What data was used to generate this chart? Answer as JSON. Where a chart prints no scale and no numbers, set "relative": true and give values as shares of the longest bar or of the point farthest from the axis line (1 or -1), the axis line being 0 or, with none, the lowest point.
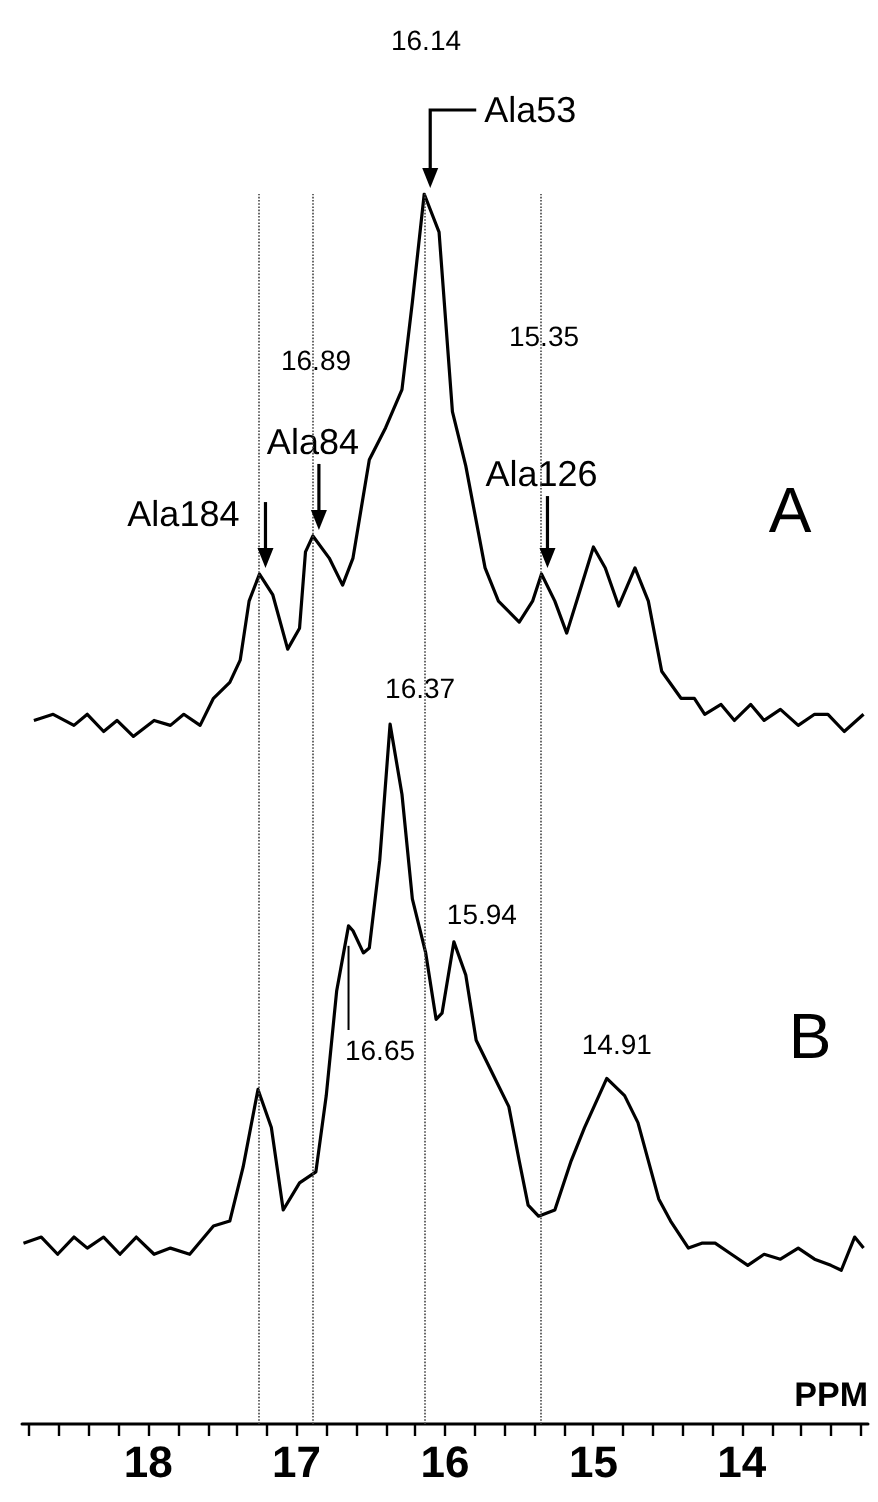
{
  "chart_data": {
    "type": "line",
    "relative": true,
    "marker": "none",
    "xlabel": "PPM",
    "xlim": [
      18.85,
      13.15
    ],
    "xticks": [
      {
        "value": 18.8,
        "label": null
      },
      {
        "value": 18.6,
        "label": null
      },
      {
        "value": 18.4,
        "label": null
      },
      {
        "value": 18.2,
        "label": null
      },
      18,
      {
        "value": 17.8,
        "label": null
      },
      {
        "value": 17.6,
        "label": null
      },
      {
        "value": 17.4,
        "label": null
      },
      {
        "value": 17.2,
        "label": null
      },
      17,
      {
        "value": 16.8,
        "label": null
      },
      {
        "value": 16.6,
        "label": null
      },
      {
        "value": 16.4,
        "label": null
      },
      {
        "value": 16.2,
        "label": null
      },
      16,
      {
        "value": 15.8,
        "label": null
      },
      {
        "value": 15.6,
        "label": null
      },
      {
        "value": 15.4,
        "label": null
      },
      {
        "value": 15.2,
        "label": null
      },
      15,
      {
        "value": 14.8,
        "label": null
      },
      {
        "value": 14.6,
        "label": null
      },
      {
        "value": 14.4,
        "label": null
      },
      {
        "value": 14.2,
        "label": null
      },
      14,
      {
        "value": 13.8,
        "label": null
      },
      {
        "value": 13.6,
        "label": null
      },
      {
        "value": 13.4,
        "label": null
      },
      {
        "value": 13.2,
        "label": null
      }
    ],
    "series": [
      {
        "name": "A",
        "color": "#000000",
        "x": [
          18.77,
          18.64,
          18.5,
          18.41,
          18.3,
          18.21,
          18.1,
          17.96,
          17.85,
          17.76,
          17.65,
          17.56,
          17.45,
          17.38,
          17.32,
          17.25,
          17.16,
          17.06,
          16.98,
          16.94,
          16.89,
          16.78,
          16.69,
          16.62,
          16.51,
          16.4,
          16.29,
          16.22,
          16.14,
          16.04,
          15.95,
          15.86,
          15.73,
          15.64,
          15.5,
          15.41,
          15.35,
          15.26,
          15.18,
          15.1,
          15.0,
          14.92,
          14.83,
          14.72,
          14.63,
          14.54,
          14.41,
          14.32,
          14.25,
          14.14,
          14.05,
          13.94,
          13.85,
          13.74,
          13.62,
          13.51,
          13.42,
          13.31,
          13.18
        ],
        "values": [
          0.572,
          0.577,
          0.568,
          0.577,
          0.563,
          0.572,
          0.559,
          0.572,
          0.568,
          0.577,
          0.568,
          0.59,
          0.603,
          0.621,
          0.669,
          0.691,
          0.674,
          0.63,
          0.647,
          0.709,
          0.722,
          0.704,
          0.682,
          0.704,
          0.784,
          0.81,
          0.841,
          0.912,
          1,
          0.969,
          0.823,
          0.779,
          0.696,
          0.669,
          0.652,
          0.669,
          0.691,
          0.669,
          0.643,
          0.674,
          0.713,
          0.696,
          0.665,
          0.696,
          0.669,
          0.612,
          0.59,
          0.59,
          0.577,
          0.585,
          0.572,
          0.585,
          0.572,
          0.581,
          0.568,
          0.577,
          0.577,
          0.563,
          0.577
        ]
      },
      {
        "name": "B",
        "color": "#000000",
        "x": [
          18.84,
          18.72,
          18.61,
          18.5,
          18.41,
          18.3,
          18.19,
          18.08,
          17.96,
          17.85,
          17.72,
          17.56,
          17.45,
          17.36,
          17.26,
          17.17,
          17.09,
          16.98,
          16.87,
          16.8,
          16.73,
          16.65,
          16.62,
          16.55,
          16.51,
          16.44,
          16.37,
          16.29,
          16.22,
          16.13,
          16.06,
          16.02,
          15.94,
          15.86,
          15.79,
          15.68,
          15.57,
          15.5,
          15.44,
          15.37,
          15.26,
          15.15,
          15.06,
          14.91,
          14.79,
          14.7,
          14.56,
          14.48,
          14.36,
          14.27,
          14.18,
          14.07,
          13.96,
          13.85,
          13.74,
          13.62,
          13.51,
          13.4,
          13.33,
          13.24,
          13.18
        ],
        "values": [
          0.147,
          0.152,
          0.138,
          0.152,
          0.143,
          0.152,
          0.138,
          0.152,
          0.138,
          0.143,
          0.138,
          0.161,
          0.165,
          0.209,
          0.272,
          0.241,
          0.174,
          0.196,
          0.205,
          0.267,
          0.352,
          0.405,
          0.401,
          0.383,
          0.387,
          0.458,
          0.569,
          0.512,
          0.427,
          0.383,
          0.329,
          0.334,
          0.392,
          0.365,
          0.312,
          0.285,
          0.258,
          0.214,
          0.178,
          0.169,
          0.174,
          0.214,
          0.241,
          0.281,
          0.267,
          0.245,
          0.183,
          0.165,
          0.143,
          0.147,
          0.147,
          0.138,
          0.129,
          0.138,
          0.134,
          0.143,
          0.134,
          0.129,
          0.125,
          0.152,
          0.143
        ]
      }
    ],
    "ref_lines": [
      {
        "axis": "x",
        "value": 17.25,
        "line_style": "dotted"
      },
      {
        "axis": "x",
        "value": 16.89,
        "line_style": "dotted"
      },
      {
        "axis": "x",
        "value": 16.14,
        "line_style": "dotted"
      },
      {
        "axis": "x",
        "value": 15.35,
        "line_style": "dotted"
      }
    ],
    "annotations": [
      "16.14",
      {
        "text": "Ala53",
        "x": 16.14,
        "y": 1
      },
      "16.89",
      {
        "text": "Ala84",
        "x": 16.89,
        "y": 0.722
      },
      {
        "text": "Ala184",
        "x": 17.25,
        "y": 0.691
      },
      "15.35",
      {
        "text": "Ala126",
        "x": 15.35,
        "y": 0.691
      },
      {
        "text": "16.37",
        "x": 16.37,
        "y": 0.569
      },
      "16.65",
      {
        "text": "15.94",
        "x": 15.94,
        "y": 0.392
      },
      {
        "text": "14.91",
        "x": 14.91,
        "y": 0.281
      }
    ]
  }
}
